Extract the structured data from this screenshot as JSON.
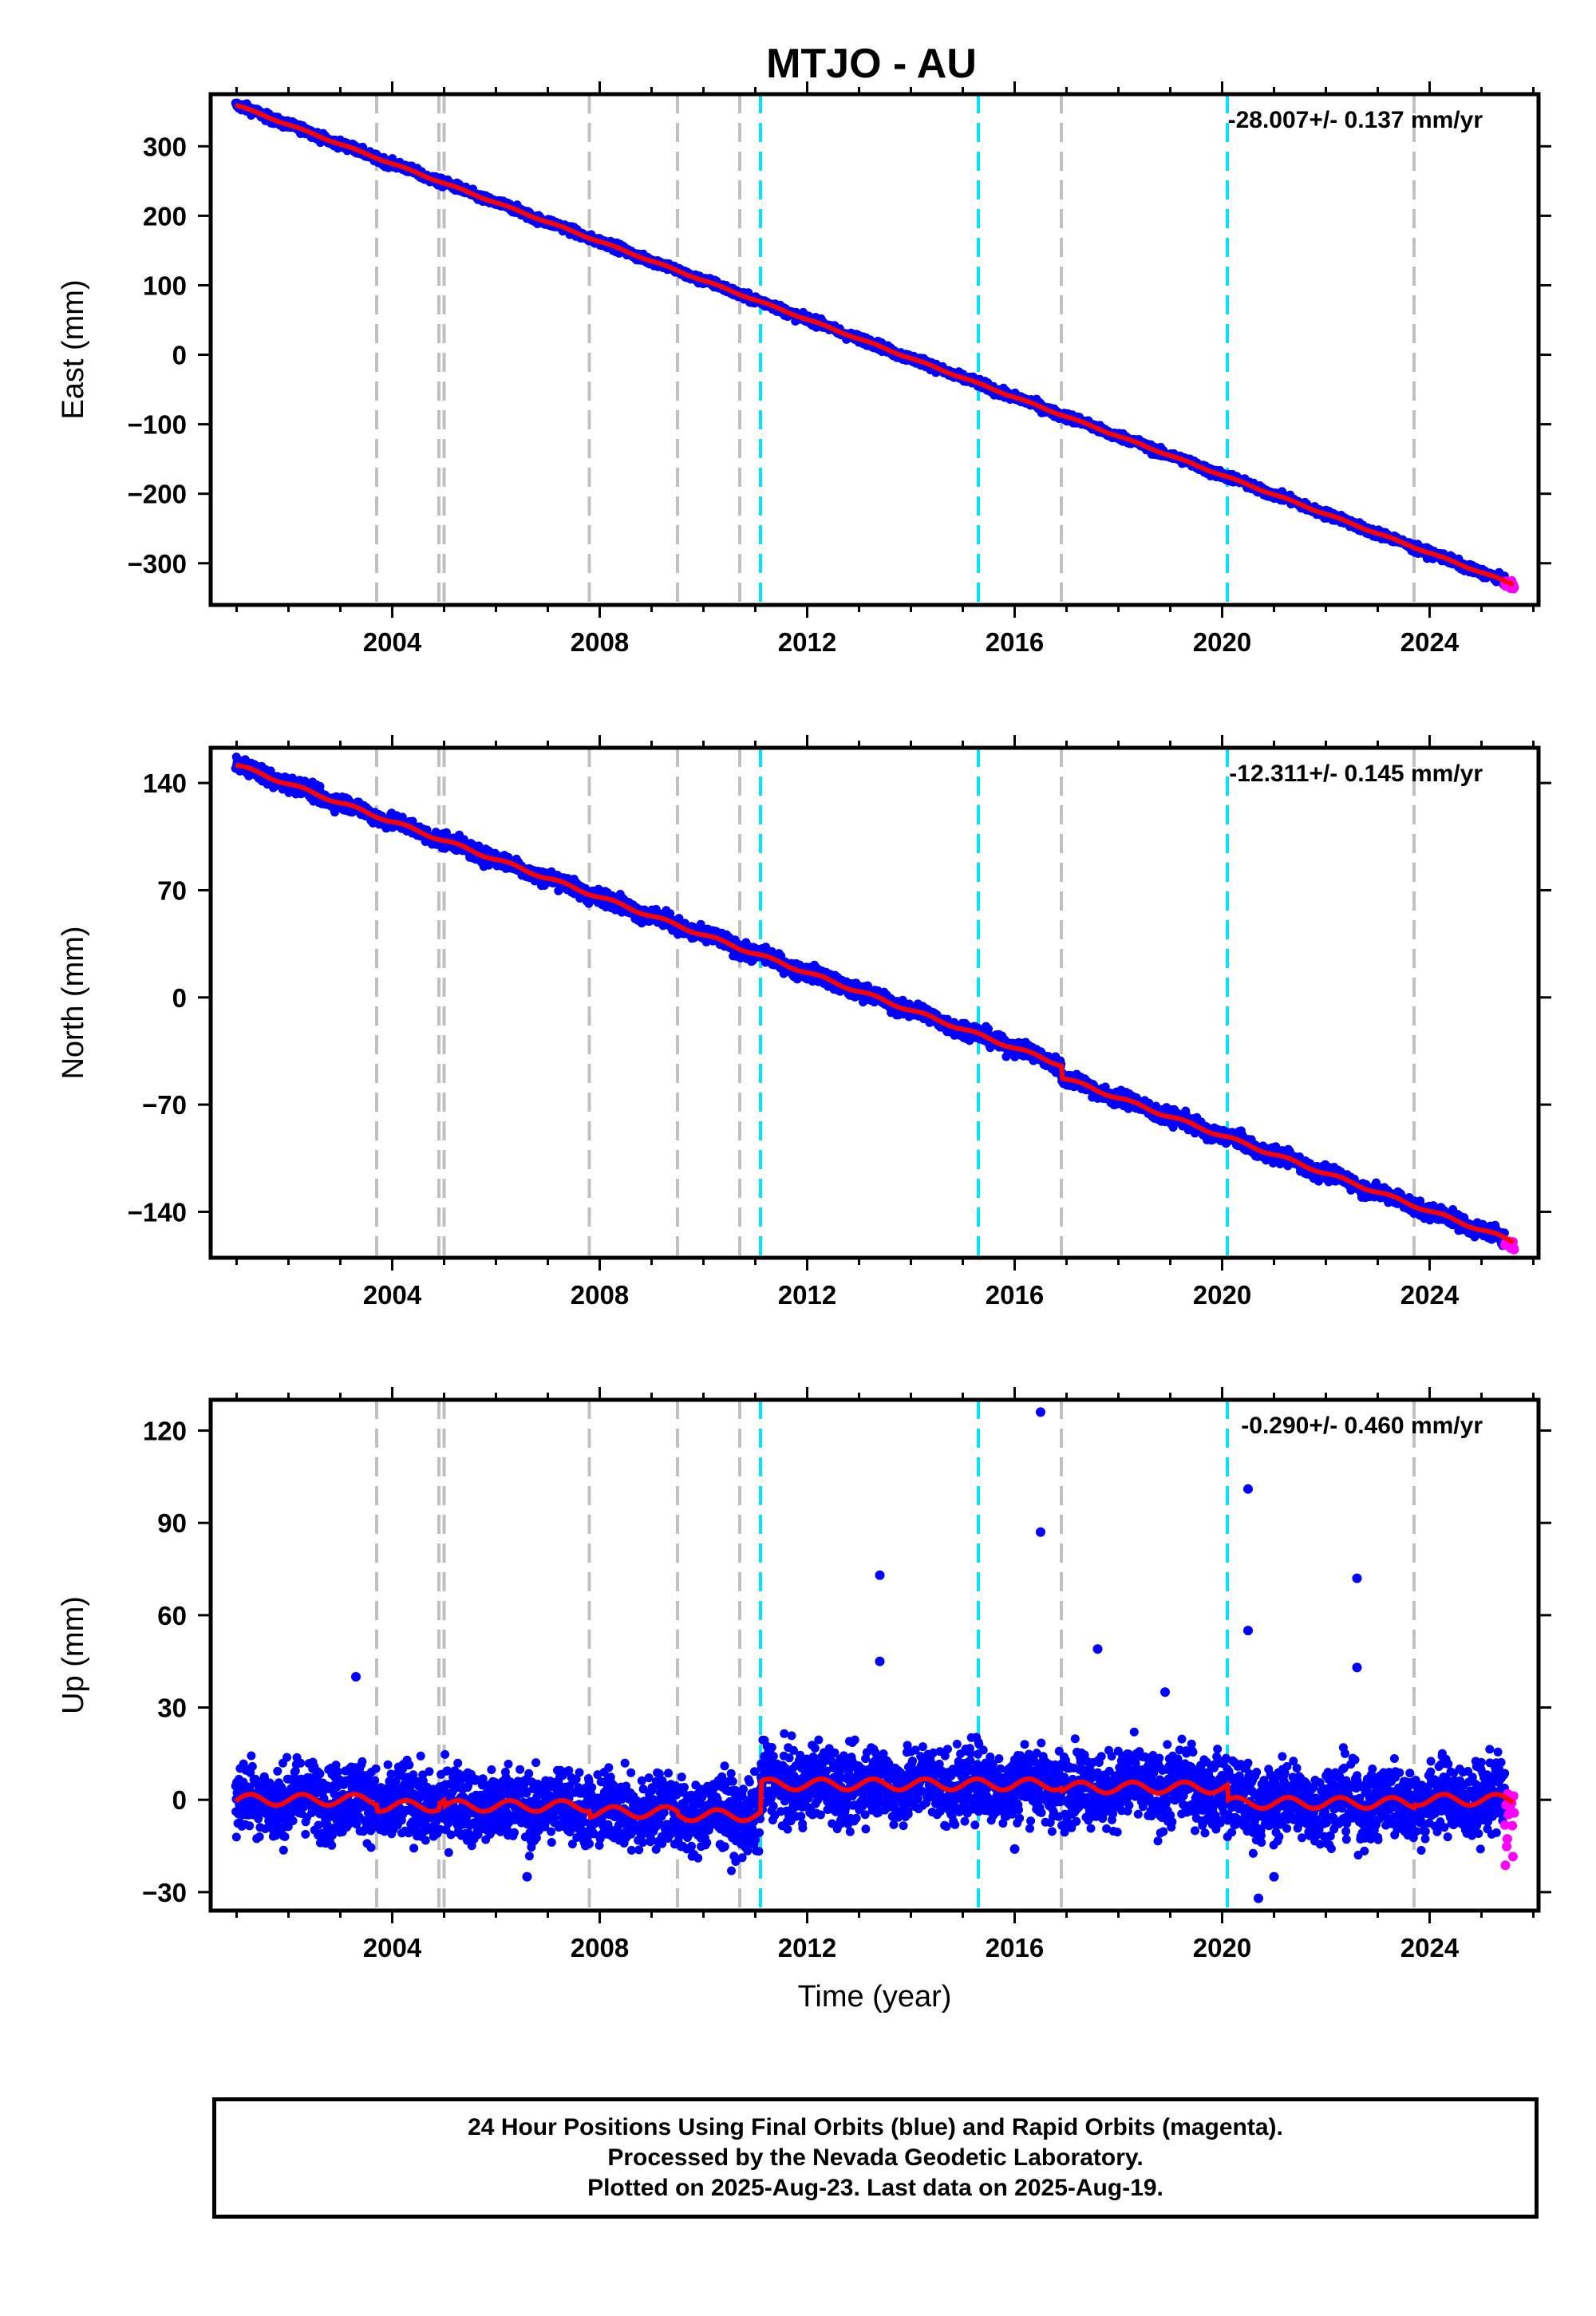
{
  "title": "MTJO - AU",
  "footer": {
    "line1": "24 Hour Positions Using Final Orbits (blue) and Rapid Orbits (magenta).",
    "line2": "Processed by the Nevada Geodetic Laboratory.",
    "line3": "Plotted on 2025-Aug-23. Last data on 2025-Aug-19."
  },
  "colors": {
    "final_orbits": "#0000ff",
    "rapid_orbits": "#ff00ff",
    "model_fit": "#ff0000",
    "equipment_change_lines": "#c0c0c0",
    "earthquake_lines": "#00e5ff"
  },
  "chart_data": [
    {
      "type": "scatter",
      "ylabel": "East (mm)",
      "xlabel": "",
      "rate": "-28.007+/- 0.137 mm/yr",
      "xlim": [
        2000.5,
        2026.1
      ],
      "ylim": [
        -360,
        375
      ],
      "xticks": [
        2004,
        2008,
        2012,
        2016,
        2020,
        2024
      ],
      "yticks": [
        -300,
        -200,
        -100,
        0,
        100,
        200,
        300
      ],
      "gray_dashed_lines": [
        2003.7,
        2004.9,
        2005.0,
        2007.8,
        2009.5,
        2010.7,
        2016.9,
        2023.7
      ],
      "cyan_dashed_lines": [
        2011.1,
        2015.3,
        2020.1
      ],
      "final_start": 2000.98,
      "final_end": 2025.45,
      "rapid_end": 2025.63,
      "intercept_2000": 387.0,
      "slope": -28.007,
      "noise": 3,
      "fit_steps": []
    },
    {
      "type": "scatter",
      "ylabel": "North (mm)",
      "xlabel": "",
      "rate": "-12.311+/- 0.145 mm/yr",
      "xlim": [
        2000.5,
        2026.1
      ],
      "ylim": [
        -170,
        163
      ],
      "xticks": [
        2004,
        2008,
        2012,
        2016,
        2020,
        2024
      ],
      "yticks": [
        -140,
        -70,
        0,
        70,
        140
      ],
      "gray_dashed_lines": [
        2003.7,
        2004.9,
        2005.0,
        2007.8,
        2009.5,
        2010.7,
        2016.9,
        2023.7
      ],
      "cyan_dashed_lines": [
        2011.1,
        2015.3,
        2020.1
      ],
      "final_start": 2000.98,
      "final_end": 2025.45,
      "rapid_end": 2025.63,
      "intercept_2000": 164.0,
      "slope": -12.311,
      "noise": 2.5,
      "fit_steps": [
        [
          2016.9,
          -8
        ]
      ]
    },
    {
      "type": "scatter",
      "ylabel": "Up (mm)",
      "xlabel": "Time (year)",
      "rate": "-0.290+/- 0.460 mm/yr",
      "xlim": [
        2000.5,
        2026.1
      ],
      "ylim": [
        -36,
        130
      ],
      "xticks": [
        2004,
        2008,
        2012,
        2016,
        2020,
        2024
      ],
      "yticks": [
        -30,
        0,
        30,
        60,
        90,
        120
      ],
      "gray_dashed_lines": [
        2003.7,
        2004.9,
        2005.0,
        2007.8,
        2009.5,
        2010.7,
        2016.9,
        2023.7
      ],
      "cyan_dashed_lines": [
        2011.1,
        2015.3,
        2020.1
      ],
      "final_start": 2000.98,
      "final_end": 2025.45,
      "rapid_end": 2025.63,
      "fit_segments": [
        [
          2000.98,
          2003.7,
          0
        ],
        [
          2003.7,
          2004.9,
          -2
        ],
        [
          2004.9,
          2005.0,
          0
        ],
        [
          2005.0,
          2007.8,
          -2
        ],
        [
          2007.8,
          2009.5,
          -4
        ],
        [
          2009.5,
          2011.1,
          -5
        ],
        [
          2011.1,
          2015.3,
          5
        ],
        [
          2015.3,
          2016.9,
          5
        ],
        [
          2016.9,
          2020.1,
          4
        ],
        [
          2020.1,
          2023.7,
          -1
        ],
        [
          2023.7,
          2025.63,
          0
        ]
      ],
      "noise": 6,
      "outliers": [
        [
          2003.3,
          40
        ],
        [
          2013.4,
          73
        ],
        [
          2013.4,
          45
        ],
        [
          2016.5,
          126
        ],
        [
          2016.5,
          87
        ],
        [
          2017.6,
          49
        ],
        [
          2018.9,
          35
        ],
        [
          2020.5,
          101
        ],
        [
          2020.5,
          55
        ],
        [
          2022.6,
          72
        ],
        [
          2022.6,
          43
        ],
        [
          2020.7,
          -32
        ],
        [
          2021.0,
          -25
        ],
        [
          2016.0,
          -16
        ],
        [
          2006.6,
          -25
        ]
      ]
    }
  ]
}
